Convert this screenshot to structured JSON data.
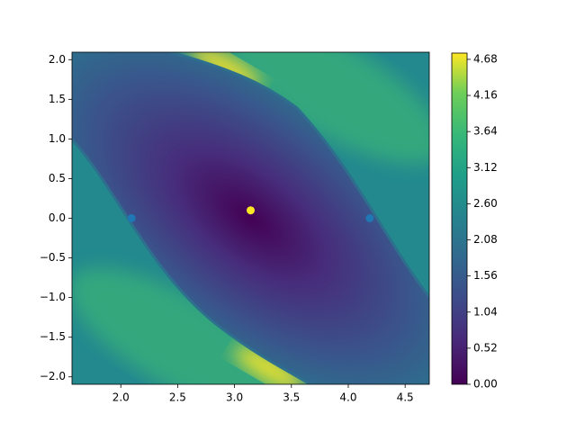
{
  "chart_data": {
    "type": "heatmap-scatter",
    "xlim": [
      1.5708,
      4.7124
    ],
    "ylim": [
      -2.094,
      2.094
    ],
    "xticks": [
      {
        "value": 2,
        "label": "2.0"
      },
      {
        "value": 2.5,
        "label": "2.5"
      },
      {
        "value": 3,
        "label": "3.0"
      },
      {
        "value": 3.5,
        "label": "3.5"
      },
      {
        "value": 4,
        "label": "4.0"
      },
      {
        "value": 4.5,
        "label": "4.5"
      }
    ],
    "yticks": [
      {
        "value": -2,
        "label": "−2.0"
      },
      {
        "value": -1.5,
        "label": "−1.5"
      },
      {
        "value": -1,
        "label": "−1.0"
      },
      {
        "value": -0.5,
        "label": "−0.5"
      },
      {
        "value": 0,
        "label": "0.0"
      },
      {
        "value": 0.5,
        "label": "0.5"
      },
      {
        "value": 1,
        "label": "1.0"
      },
      {
        "value": 1.5,
        "label": "1.5"
      },
      {
        "value": 2,
        "label": "2.0"
      }
    ],
    "series": [
      {
        "color": "#1f77b4",
        "x": [
          2.094,
          4.189
        ],
        "values": [
          0,
          0
        ]
      },
      {
        "color": "#fde725",
        "x": [
          3.1416
        ],
        "values": [
          0.1
        ]
      }
    ],
    "colorbar": {
      "lim": [
        0,
        4.77
      ],
      "ticks": [
        {
          "value": 0,
          "label": "0.00"
        },
        {
          "value": 0.52,
          "label": "0.52"
        },
        {
          "value": 1.04,
          "label": "1.04"
        },
        {
          "value": 1.56,
          "label": "1.56"
        },
        {
          "value": 2.08,
          "label": "2.08"
        },
        {
          "value": 2.6,
          "label": "2.60"
        },
        {
          "value": 3.12,
          "label": "3.12"
        },
        {
          "value": 3.64,
          "label": "3.64"
        },
        {
          "value": 4.16,
          "label": "4.16"
        },
        {
          "value": 4.68,
          "label": "4.68"
        }
      ]
    }
  }
}
